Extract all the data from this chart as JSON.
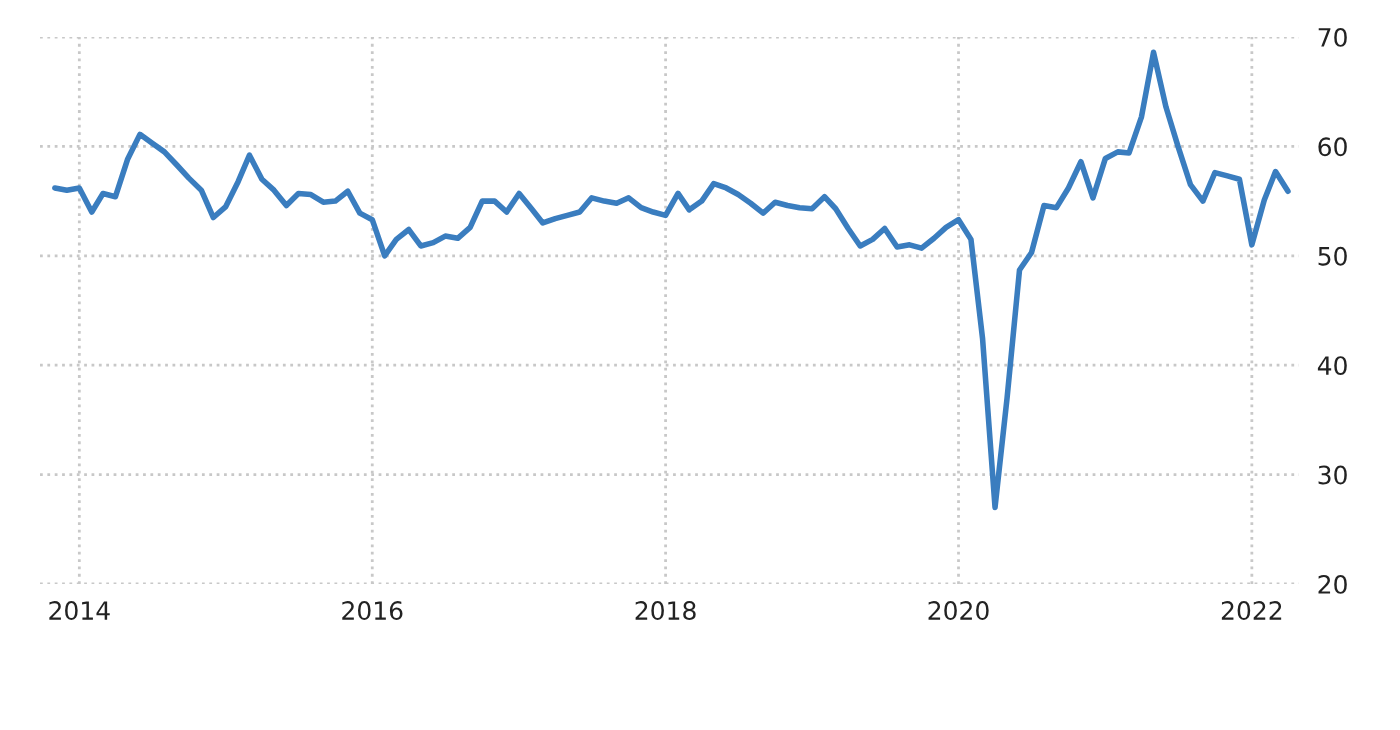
{
  "chart_data": {
    "type": "line",
    "x": [
      "2013-11",
      "2013-12",
      "2014-01",
      "2014-02",
      "2014-03",
      "2014-04",
      "2014-05",
      "2014-06",
      "2014-07",
      "2014-08",
      "2014-09",
      "2014-10",
      "2014-11",
      "2014-12",
      "2015-01",
      "2015-02",
      "2015-03",
      "2015-04",
      "2015-05",
      "2015-06",
      "2015-07",
      "2015-08",
      "2015-09",
      "2015-10",
      "2015-11",
      "2015-12",
      "2016-01",
      "2016-02",
      "2016-03",
      "2016-04",
      "2016-05",
      "2016-06",
      "2016-07",
      "2016-08",
      "2016-09",
      "2016-10",
      "2016-11",
      "2016-12",
      "2017-01",
      "2017-02",
      "2017-03",
      "2017-04",
      "2017-05",
      "2017-06",
      "2017-07",
      "2017-08",
      "2017-09",
      "2017-10",
      "2017-11",
      "2017-12",
      "2018-01",
      "2018-02",
      "2018-03",
      "2018-04",
      "2018-05",
      "2018-06",
      "2018-07",
      "2018-08",
      "2018-09",
      "2018-10",
      "2018-11",
      "2018-12",
      "2019-01",
      "2019-02",
      "2019-03",
      "2019-04",
      "2019-05",
      "2019-06",
      "2019-07",
      "2019-08",
      "2019-09",
      "2019-10",
      "2019-11",
      "2019-12",
      "2020-01",
      "2020-02",
      "2020-03",
      "2020-04",
      "2020-05",
      "2020-06",
      "2020-07",
      "2020-08",
      "2020-09",
      "2020-10",
      "2020-11",
      "2020-12",
      "2021-01",
      "2021-02",
      "2021-03",
      "2021-04",
      "2021-05",
      "2021-06",
      "2021-07",
      "2021-08",
      "2021-09",
      "2021-10",
      "2021-11",
      "2021-12",
      "2022-01",
      "2022-02",
      "2022-03",
      "2022-04"
    ],
    "series": [
      {
        "color": "#3a7dbf",
        "values": [
          56.2,
          56.0,
          56.2,
          54.0,
          55.7,
          55.4,
          58.8,
          61.1,
          60.3,
          59.5,
          58.3,
          57.1,
          56.0,
          53.5,
          54.5,
          56.8,
          59.2,
          57.0,
          56.0,
          54.6,
          55.7,
          55.6,
          54.9,
          55.0,
          55.9,
          53.9,
          53.3,
          50.0,
          51.5,
          52.4,
          50.9,
          51.2,
          51.8,
          51.6,
          52.6,
          55.0,
          55.0,
          54.0,
          55.7,
          54.3,
          53.0,
          53.4,
          53.7,
          54.0,
          55.3,
          55.0,
          54.8,
          55.3,
          54.4,
          54.0,
          53.7,
          55.7,
          54.2,
          55.0,
          56.6,
          56.2,
          55.6,
          54.8,
          53.9,
          54.9,
          54.6,
          54.4,
          54.3,
          55.4,
          54.3,
          52.5,
          50.9,
          51.5,
          52.5,
          50.8,
          51.0,
          50.7,
          51.6,
          52.6,
          53.3,
          51.5,
          42.4,
          27.0,
          37.0,
          48.7,
          50.3,
          54.6,
          54.4,
          56.2,
          58.6,
          55.3,
          58.9,
          59.5,
          59.4,
          62.7,
          68.6,
          63.6,
          60.0,
          56.5,
          55.0,
          57.6,
          57.3,
          57.0,
          51.0,
          55.1,
          57.7,
          55.9
        ]
      }
    ],
    "xlim": [
      "2013-09-25",
      "2022-05-01"
    ],
    "xticks": [
      "2014",
      "2016",
      "2018",
      "2020",
      "2022"
    ],
    "ylim": [
      20,
      70
    ],
    "yticks": [
      20,
      30,
      40,
      50,
      60,
      70
    ],
    "grid": true,
    "line_style": "solid",
    "marker": "none"
  }
}
